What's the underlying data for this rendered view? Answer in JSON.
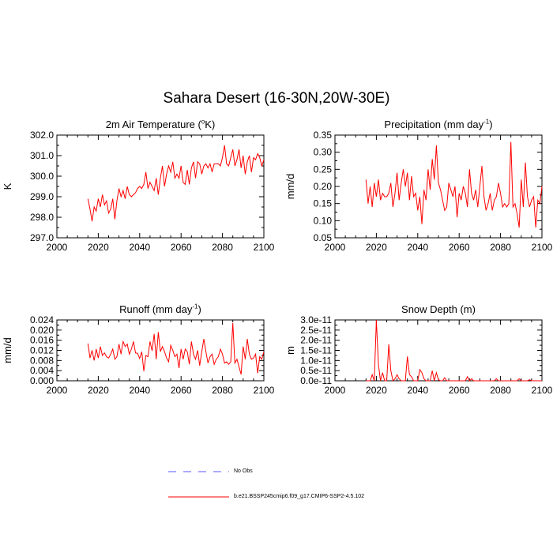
{
  "title": "Sahara Desert (16-30N,20W-30E)",
  "chart_data": [
    {
      "type": "line",
      "title_main": "2m Air Temperature (",
      "title_sup": "o",
      "title_tail": "K)",
      "ylabel": "K",
      "xlim": [
        2000,
        2100
      ],
      "ylim": [
        297.0,
        302.0
      ],
      "xticks": [
        "2000",
        "2020",
        "2040",
        "2060",
        "2080",
        "2100"
      ],
      "yticks": [
        "297.0",
        "298.0",
        "299.0",
        "300.0",
        "301.0",
        "302.0"
      ],
      "x": [
        2015,
        2016,
        2017,
        2018,
        2019,
        2020,
        2021,
        2022,
        2023,
        2024,
        2025,
        2026,
        2027,
        2028,
        2029,
        2030,
        2031,
        2032,
        2033,
        2034,
        2035,
        2036,
        2037,
        2038,
        2039,
        2040,
        2041,
        2042,
        2043,
        2044,
        2045,
        2046,
        2047,
        2048,
        2049,
        2050,
        2051,
        2052,
        2053,
        2054,
        2055,
        2056,
        2057,
        2058,
        2059,
        2060,
        2061,
        2062,
        2063,
        2064,
        2065,
        2066,
        2067,
        2068,
        2069,
        2070,
        2071,
        2072,
        2073,
        2074,
        2075,
        2076,
        2077,
        2078,
        2079,
        2080,
        2081,
        2082,
        2083,
        2084,
        2085,
        2086,
        2087,
        2088,
        2089,
        2090,
        2091,
        2092,
        2093,
        2094,
        2095,
        2096,
        2097,
        2098,
        2099,
        2100
      ],
      "series": [
        {
          "name": "",
          "values": [
            298.9,
            298.4,
            297.8,
            298.5,
            298.3,
            298.9,
            298.5,
            299.1,
            298.6,
            298.8,
            298.2,
            298.4,
            298.9,
            297.9,
            298.8,
            299.4,
            299.0,
            299.3,
            298.9,
            299.5,
            299.1,
            299.0,
            299.1,
            299.2,
            299.4,
            299.5,
            299.4,
            299.6,
            300.2,
            299.4,
            299.7,
            299.5,
            299.3,
            299.9,
            299.1,
            299.9,
            300.5,
            299.5,
            300.1,
            300.5,
            300.2,
            300.7,
            299.9,
            300.1,
            299.9,
            300.5,
            299.7,
            299.6,
            300.3,
            299.6,
            300.4,
            300.7,
            299.9,
            300.7,
            300.6,
            300.1,
            300.5,
            300.6,
            300.4,
            300.6,
            300.2,
            300.6,
            300.6,
            300.6,
            300.5,
            300.9,
            301.5,
            300.6,
            300.5,
            300.9,
            301.3,
            300.5,
            300.8,
            301.3,
            300.4,
            301.0,
            300.1,
            300.7,
            301.0,
            300.2,
            300.9,
            300.8,
            301.1,
            300.9,
            300.5,
            300.8
          ]
        }
      ]
    },
    {
      "type": "line",
      "title_main": "Precipitation (mm day",
      "title_sup": "-1",
      "title_tail": ")",
      "ylabel": "mm/d",
      "xlim": [
        2000,
        2100
      ],
      "ylim": [
        0.05,
        0.35
      ],
      "xticks": [
        "2000",
        "2020",
        "2040",
        "2060",
        "2080",
        "2100"
      ],
      "yticks": [
        "0.05",
        "0.10",
        "0.15",
        "0.20",
        "0.25",
        "0.30",
        "0.35"
      ],
      "x": [
        2015,
        2016,
        2017,
        2018,
        2019,
        2020,
        2021,
        2022,
        2023,
        2024,
        2025,
        2026,
        2027,
        2028,
        2029,
        2030,
        2031,
        2032,
        2033,
        2034,
        2035,
        2036,
        2037,
        2038,
        2039,
        2040,
        2041,
        2042,
        2043,
        2044,
        2045,
        2046,
        2047,
        2048,
        2049,
        2050,
        2051,
        2052,
        2053,
        2054,
        2055,
        2056,
        2057,
        2058,
        2059,
        2060,
        2061,
        2062,
        2063,
        2064,
        2065,
        2066,
        2067,
        2068,
        2069,
        2070,
        2071,
        2072,
        2073,
        2074,
        2075,
        2076,
        2077,
        2078,
        2079,
        2080,
        2081,
        2082,
        2083,
        2084,
        2085,
        2086,
        2087,
        2088,
        2089,
        2090,
        2091,
        2092,
        2093,
        2094,
        2095,
        2096,
        2097,
        2098,
        2099,
        2100
      ],
      "series": [
        {
          "name": "",
          "values": [
            0.22,
            0.15,
            0.2,
            0.14,
            0.21,
            0.17,
            0.22,
            0.16,
            0.18,
            0.17,
            0.17,
            0.18,
            0.21,
            0.14,
            0.18,
            0.24,
            0.16,
            0.21,
            0.25,
            0.2,
            0.24,
            0.16,
            0.23,
            0.17,
            0.18,
            0.13,
            0.17,
            0.09,
            0.19,
            0.16,
            0.25,
            0.19,
            0.28,
            0.22,
            0.32,
            0.21,
            0.19,
            0.16,
            0.13,
            0.14,
            0.21,
            0.19,
            0.17,
            0.2,
            0.11,
            0.18,
            0.16,
            0.2,
            0.18,
            0.14,
            0.25,
            0.18,
            0.16,
            0.19,
            0.14,
            0.2,
            0.26,
            0.17,
            0.13,
            0.15,
            0.18,
            0.13,
            0.16,
            0.17,
            0.21,
            0.18,
            0.14,
            0.15,
            0.14,
            0.15,
            0.33,
            0.14,
            0.15,
            0.12,
            0.08,
            0.22,
            0.14,
            0.27,
            0.17,
            0.14,
            0.16,
            0.17,
            0.08,
            0.16,
            0.15,
            0.2
          ]
        }
      ]
    },
    {
      "type": "line",
      "title_main": "Runoff (mm day",
      "title_sup": "-1",
      "title_tail": ")",
      "ylabel": "mm/d",
      "xlim": [
        2000,
        2100
      ],
      "ylim": [
        0.0,
        0.024
      ],
      "xticks": [
        "2000",
        "2020",
        "2040",
        "2060",
        "2080",
        "2100"
      ],
      "yticks": [
        "0.000",
        "0.004",
        "0.008",
        "0.012",
        "0.016",
        "0.020",
        "0.024"
      ],
      "x": [
        2015,
        2016,
        2017,
        2018,
        2019,
        2020,
        2021,
        2022,
        2023,
        2024,
        2025,
        2026,
        2027,
        2028,
        2029,
        2030,
        2031,
        2032,
        2033,
        2034,
        2035,
        2036,
        2037,
        2038,
        2039,
        2040,
        2041,
        2042,
        2043,
        2044,
        2045,
        2046,
        2047,
        2048,
        2049,
        2050,
        2051,
        2052,
        2053,
        2054,
        2055,
        2056,
        2057,
        2058,
        2059,
        2060,
        2061,
        2062,
        2063,
        2064,
        2065,
        2066,
        2067,
        2068,
        2069,
        2070,
        2071,
        2072,
        2073,
        2074,
        2075,
        2076,
        2077,
        2078,
        2079,
        2080,
        2081,
        2082,
        2083,
        2084,
        2085,
        2086,
        2087,
        2088,
        2089,
        2090,
        2091,
        2092,
        2093,
        2094,
        2095,
        2096,
        2097,
        2098,
        2099,
        2100
      ],
      "series": [
        {
          "name": "",
          "values": [
            0.0147,
            0.009,
            0.012,
            0.008,
            0.0125,
            0.009,
            0.0135,
            0.01,
            0.011,
            0.0095,
            0.009,
            0.0105,
            0.0125,
            0.0085,
            0.0095,
            0.0145,
            0.0105,
            0.0155,
            0.0135,
            0.0145,
            0.0105,
            0.0125,
            0.0155,
            0.011,
            0.0108,
            0.0088,
            0.0115,
            0.0038,
            0.01,
            0.0095,
            0.0155,
            0.0118,
            0.0185,
            0.0085,
            0.0192,
            0.0115,
            0.0135,
            0.0115,
            0.009,
            0.0075,
            0.014,
            0.012,
            0.0095,
            0.0105,
            0.005,
            0.0125,
            0.0085,
            0.0125,
            0.0115,
            0.0065,
            0.0155,
            0.0105,
            0.0085,
            0.012,
            0.006,
            0.0115,
            0.0165,
            0.0115,
            0.007,
            0.0095,
            0.0105,
            0.0065,
            0.0085,
            0.0095,
            0.0125,
            0.0105,
            0.007,
            0.0075,
            0.0065,
            0.0075,
            0.0228,
            0.007,
            0.0085,
            0.0055,
            0.0025,
            0.0135,
            0.0085,
            0.0165,
            0.0105,
            0.0085,
            0.009,
            0.0105,
            0.003,
            0.0095,
            0.0085,
            0.0115
          ]
        }
      ]
    },
    {
      "type": "line",
      "title_main": "Snow Depth (m)",
      "title_sup": "",
      "title_tail": "",
      "ylabel": "m",
      "xlim": [
        2000,
        2100
      ],
      "ylim": [
        0.0,
        3e-11
      ],
      "xticks": [
        "2000",
        "2020",
        "2040",
        "2060",
        "2080",
        "2100"
      ],
      "yticks": [
        "0.0e-11",
        "0.5e-11",
        "1.0e-11",
        "1.5e-11",
        "2.0e-11",
        "2.5e-11",
        "3.0e-11"
      ],
      "x": [
        2015,
        2016,
        2017,
        2018,
        2019,
        2020,
        2021,
        2022,
        2023,
        2024,
        2025,
        2026,
        2027,
        2028,
        2029,
        2030,
        2031,
        2032,
        2033,
        2034,
        2035,
        2036,
        2037,
        2038,
        2039,
        2040,
        2041,
        2042,
        2043,
        2044,
        2045,
        2046,
        2047,
        2048,
        2049,
        2050,
        2051,
        2052,
        2053,
        2054,
        2055,
        2056,
        2057,
        2058,
        2059,
        2060,
        2061,
        2062,
        2063,
        2064,
        2065,
        2066,
        2067,
        2068,
        2069,
        2070,
        2071,
        2072,
        2073,
        2074,
        2075,
        2076,
        2077,
        2078,
        2079,
        2080,
        2081,
        2082,
        2083,
        2084,
        2085,
        2086,
        2087,
        2088,
        2089,
        2090,
        2091,
        2092,
        2093,
        2094,
        2095,
        2096,
        2097,
        2098,
        2099,
        2100
      ],
      "series": [
        {
          "name": "",
          "values": [
            0.0,
            0.0,
            0.0,
            3e-12,
            0.0,
            3e-11,
            8e-12,
            0.0,
            4e-12,
            0.0,
            0.0,
            1.8e-11,
            5e-12,
            0.0,
            1e-12,
            3e-12,
            1e-12,
            0.0,
            0.0,
            0.0,
            1.2e-11,
            3e-12,
            2e-12,
            0.0,
            0.0,
            0.0,
            5.5e-12,
            4e-12,
            1e-12,
            0.0,
            0.0,
            0.0,
            5e-12,
            0.0,
            4e-12,
            5e-13,
            0.0,
            0.0,
            1.5e-12,
            0.0,
            0.0,
            0.0,
            0.0,
            0.0,
            0.0,
            0.0,
            0.0,
            0.0,
            0.0,
            2e-12,
            0.0,
            1e-12,
            0.0,
            0.0,
            0.0,
            0.0,
            0.0,
            0.0,
            0.0,
            0.0,
            0.0,
            0.0,
            0.0,
            1e-12,
            0.0,
            0.0,
            0.0,
            0.0,
            0.0,
            0.0,
            0.0,
            0.0,
            0.0,
            0.0,
            1e-12,
            0.0,
            0.0,
            0.0,
            0.0,
            5e-13,
            0.0,
            0.0,
            0.0,
            0.0,
            0.0,
            0.0
          ]
        }
      ]
    }
  ],
  "legend": [
    {
      "label": "No Obs",
      "style": "dashed",
      "color": "#5555ff"
    },
    {
      "label": "b.e21.BSSP245cmip6.f09_g17.CMIP6-SSP2-4.5.102",
      "style": "solid",
      "color": "#ff0000"
    }
  ],
  "line_color": "#ff0000"
}
